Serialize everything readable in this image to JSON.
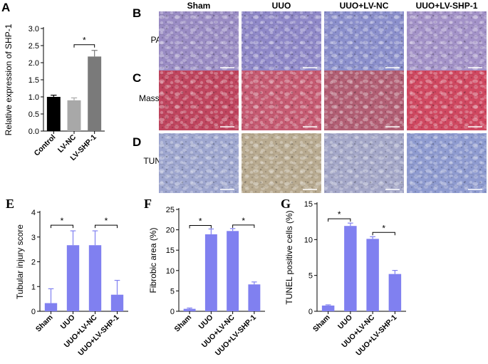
{
  "panel_letters": {
    "A": "A",
    "B": "B",
    "C": "C",
    "D": "D",
    "E": "E",
    "F": "F",
    "G": "G"
  },
  "micrographs": {
    "columns": [
      "Sham",
      "UUO",
      "UUO+LV-NC",
      "UUO+LV-SHP-1"
    ],
    "rows": [
      "PAS",
      "Masson",
      "TUNEL"
    ],
    "colors": {
      "PAS": [
        "#9a8cc4",
        "#8f88c8",
        "#8b8fcc",
        "#a392c8"
      ],
      "Masson": [
        "#c0455f",
        "#c65a72",
        "#b25e74",
        "#d04861"
      ],
      "TUNEL": [
        "#9ea6cf",
        "#b8aa90",
        "#a4a7c8",
        "#8f9bd0"
      ]
    }
  },
  "chart_data": [
    {
      "id": "A",
      "type": "bar",
      "categories": [
        "Control",
        "LV-NC",
        "LV-SHP-1"
      ],
      "values": [
        1.0,
        0.9,
        2.18
      ],
      "errors": [
        0.05,
        0.07,
        0.18
      ],
      "colors": [
        "#000000",
        "#a8a8a8",
        "#7a7a7a"
      ],
      "title": "",
      "xlabel": "",
      "ylabel": "Relative expression of SHP-1",
      "ylim": [
        0,
        3.0
      ],
      "yticks": [
        "0.0",
        "0.5",
        "1.0",
        "1.5",
        "2.0",
        "2.5",
        "3.0"
      ],
      "significance": [
        {
          "from": 1,
          "to": 2,
          "label": "*"
        }
      ]
    },
    {
      "id": "E",
      "type": "bar",
      "categories": [
        "Sham",
        "UUO",
        "UUO+LV-NC",
        "UUO+LV-SHP-1"
      ],
      "values": [
        0.33,
        2.67,
        2.67,
        0.67
      ],
      "errors": [
        0.58,
        0.58,
        0.58,
        0.58
      ],
      "colors": [
        "#8080f0",
        "#8080f0",
        "#8080f0",
        "#8080f0"
      ],
      "title": "",
      "xlabel": "",
      "ylabel": "Tubular injury score",
      "ylim": [
        0,
        4
      ],
      "yticks": [
        "0",
        "1",
        "2",
        "3",
        "4"
      ],
      "significance": [
        {
          "from": 0,
          "to": 1,
          "label": "*"
        },
        {
          "from": 2,
          "to": 3,
          "label": "*"
        }
      ]
    },
    {
      "id": "F",
      "type": "bar",
      "categories": [
        "Sham",
        "UUO",
        "UUO+LV-NC",
        "UUO+LV-SHP-1"
      ],
      "values": [
        0.6,
        18.9,
        19.7,
        6.6
      ],
      "errors": [
        0.2,
        1.3,
        0.6,
        0.6
      ],
      "colors": [
        "#8080f0",
        "#8080f0",
        "#8080f0",
        "#8080f0"
      ],
      "title": "",
      "xlabel": "",
      "ylabel": "Fibrobic area (%)",
      "ylim": [
        0,
        25
      ],
      "yticks": [
        "0",
        "5",
        "10",
        "15",
        "20",
        "25"
      ],
      "significance": [
        {
          "from": 0,
          "to": 1,
          "label": "*"
        },
        {
          "from": 2,
          "to": 3,
          "label": "*"
        }
      ]
    },
    {
      "id": "G",
      "type": "bar",
      "categories": [
        "Sham",
        "UUO",
        "UUO+LV-NC",
        "UUO+LV-SHP-1"
      ],
      "values": [
        0.8,
        11.9,
        10.1,
        5.2
      ],
      "errors": [
        0.1,
        0.4,
        0.3,
        0.5
      ],
      "colors": [
        "#8080f0",
        "#8080f0",
        "#8080f0",
        "#8080f0"
      ],
      "title": "",
      "xlabel": "",
      "ylabel": "TUNEL positive cells (%)",
      "ylim": [
        0,
        15
      ],
      "yticks": [
        "0",
        "5",
        "10",
        "15"
      ],
      "significance": [
        {
          "from": 0,
          "to": 1,
          "label": "*"
        },
        {
          "from": 2,
          "to": 3,
          "label": "*"
        }
      ]
    }
  ]
}
